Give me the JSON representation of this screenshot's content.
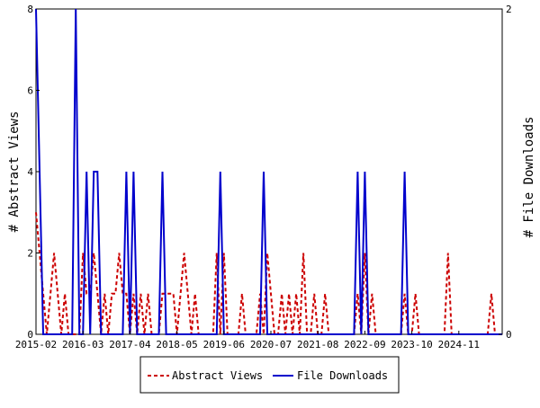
{
  "chart_data": {
    "type": "line",
    "y_left": {
      "label": "# Abstract Views",
      "range": [
        0,
        8
      ],
      "ticks": [
        0,
        2,
        4,
        6,
        8
      ]
    },
    "y_right": {
      "label": "# File Downloads",
      "range": [
        0,
        2
      ],
      "ticks": [
        0,
        2
      ]
    },
    "x_range": [
      "2015-02",
      "2025-11"
    ],
    "x_ticks": [
      "2015-02",
      "2016-03",
      "2017-04",
      "2018-05",
      "2019-06",
      "2020-07",
      "2021-08",
      "2022-09",
      "2023-10",
      "2024-11"
    ],
    "grid": false,
    "legend": "bottom",
    "series": [
      {
        "name": "Abstract Views",
        "axis": "left",
        "color": "#cc0000",
        "style": "dashed",
        "points": [
          [
            "2015-02",
            3
          ],
          [
            "2015-03",
            2
          ],
          [
            "2015-04",
            1
          ],
          [
            "2015-05",
            0
          ],
          [
            "2015-06",
            1
          ],
          [
            "2015-07",
            2
          ],
          [
            "2015-08",
            1
          ],
          [
            "2015-09",
            0
          ],
          [
            "2015-10",
            1
          ],
          [
            "2015-11",
            0
          ],
          [
            "2016-03",
            2
          ],
          [
            "2016-04",
            1
          ],
          [
            "2016-05",
            1
          ],
          [
            "2016-06",
            2
          ],
          [
            "2016-07",
            1
          ],
          [
            "2016-08",
            0
          ],
          [
            "2016-09",
            1
          ],
          [
            "2016-10",
            0
          ],
          [
            "2016-11",
            1
          ],
          [
            "2016-12",
            1
          ],
          [
            "2017-01",
            2
          ],
          [
            "2017-02",
            1
          ],
          [
            "2017-03",
            1
          ],
          [
            "2017-04",
            0
          ],
          [
            "2017-05",
            1
          ],
          [
            "2017-06",
            0
          ],
          [
            "2017-07",
            1
          ],
          [
            "2017-08",
            0
          ],
          [
            "2017-09",
            1
          ],
          [
            "2017-10",
            0
          ],
          [
            "2017-11",
            0
          ],
          [
            "2017-12",
            0
          ],
          [
            "2018-01",
            1
          ],
          [
            "2018-02",
            1
          ],
          [
            "2018-03",
            1
          ],
          [
            "2018-04",
            1
          ],
          [
            "2018-05",
            0
          ],
          [
            "2018-06",
            1
          ],
          [
            "2018-07",
            2
          ],
          [
            "2018-08",
            1
          ],
          [
            "2018-09",
            0
          ],
          [
            "2018-10",
            1
          ],
          [
            "2018-11",
            0
          ],
          [
            "2019-04",
            2
          ],
          [
            "2019-05",
            0
          ],
          [
            "2019-06",
            2
          ],
          [
            "2019-07",
            0
          ],
          [
            "2019-08",
            0
          ],
          [
            "2019-09",
            0
          ],
          [
            "2019-10",
            0
          ],
          [
            "2019-11",
            1
          ],
          [
            "2019-12",
            0
          ],
          [
            "2020-04",
            1
          ],
          [
            "2020-05",
            0
          ],
          [
            "2020-06",
            2
          ],
          [
            "2020-07",
            1
          ],
          [
            "2020-08",
            0
          ],
          [
            "2020-09",
            0
          ],
          [
            "2020-10",
            1
          ],
          [
            "2020-11",
            0
          ],
          [
            "2020-12",
            1
          ],
          [
            "2021-01",
            0
          ],
          [
            "2021-02",
            1
          ],
          [
            "2021-03",
            0
          ],
          [
            "2021-04",
            2
          ],
          [
            "2021-05",
            0
          ],
          [
            "2021-06",
            0
          ],
          [
            "2021-07",
            1
          ],
          [
            "2021-08",
            0
          ],
          [
            "2021-09",
            0
          ],
          [
            "2021-10",
            1
          ],
          [
            "2021-11",
            0
          ],
          [
            "2022-07",
            1
          ],
          [
            "2022-08",
            0
          ],
          [
            "2022-09",
            2
          ],
          [
            "2022-10",
            0
          ],
          [
            "2022-11",
            1
          ],
          [
            "2022-12",
            0
          ],
          [
            "2023-08",
            1
          ],
          [
            "2023-09",
            0
          ],
          [
            "2023-10",
            0
          ],
          [
            "2023-11",
            1
          ],
          [
            "2023-12",
            0
          ],
          [
            "2024-07",
            0
          ],
          [
            "2024-08",
            2
          ],
          [
            "2024-09",
            0
          ],
          [
            "2025-07",
            0
          ],
          [
            "2025-08",
            1
          ],
          [
            "2025-09",
            0
          ]
        ]
      },
      {
        "name": "File Downloads",
        "axis": "right",
        "color": "#0000cc",
        "style": "solid",
        "points": [
          [
            "2015-02",
            2
          ],
          [
            "2015-03",
            1
          ],
          [
            "2015-04",
            0
          ],
          [
            "2015-12",
            0
          ],
          [
            "2016-01",
            2
          ],
          [
            "2016-02",
            0
          ],
          [
            "2016-04",
            1
          ],
          [
            "2016-05",
            0
          ],
          [
            "2016-06",
            1
          ],
          [
            "2016-07",
            1
          ],
          [
            "2016-08",
            0
          ],
          [
            "2017-03",
            1
          ],
          [
            "2017-04",
            0
          ],
          [
            "2017-05",
            1
          ],
          [
            "2017-06",
            0
          ],
          [
            "2018-01",
            1
          ],
          [
            "2018-02",
            0
          ],
          [
            "2019-05",
            1
          ],
          [
            "2019-06",
            0
          ],
          [
            "2020-05",
            1
          ],
          [
            "2020-06",
            0
          ],
          [
            "2022-07",
            1
          ],
          [
            "2022-08",
            0
          ],
          [
            "2022-09",
            1
          ],
          [
            "2022-10",
            0
          ],
          [
            "2023-08",
            1
          ],
          [
            "2023-09",
            0
          ]
        ]
      }
    ]
  }
}
